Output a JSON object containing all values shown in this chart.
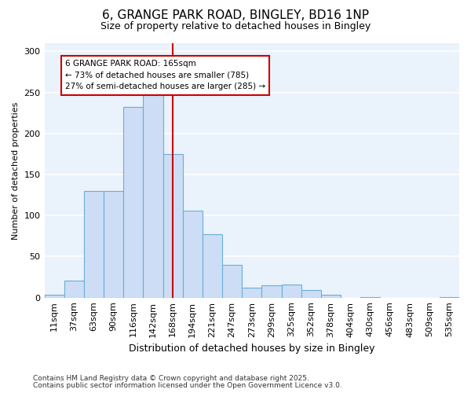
{
  "title1": "6, GRANGE PARK ROAD, BINGLEY, BD16 1NP",
  "title2": "Size of property relative to detached houses in Bingley",
  "xlabel": "Distribution of detached houses by size in Bingley",
  "ylabel": "Number of detached properties",
  "categories": [
    "11sqm",
    "37sqm",
    "63sqm",
    "90sqm",
    "116sqm",
    "142sqm",
    "168sqm",
    "194sqm",
    "221sqm",
    "247sqm",
    "273sqm",
    "299sqm",
    "325sqm",
    "352sqm",
    "378sqm",
    "404sqm",
    "430sqm",
    "456sqm",
    "483sqm",
    "509sqm",
    "535sqm"
  ],
  "values": [
    4,
    21,
    130,
    130,
    232,
    251,
    175,
    106,
    77,
    40,
    12,
    15,
    16,
    9,
    4,
    0,
    1,
    0,
    0,
    0,
    1
  ],
  "bar_color": "#ccddf5",
  "bar_edge_color": "#6baed6",
  "vline_color": "#cc0000",
  "vline_pos": 6.0,
  "annotation_text": "6 GRANGE PARK ROAD: 165sqm\n← 73% of detached houses are smaller (785)\n27% of semi-detached houses are larger (285) →",
  "annotation_box_facecolor": "#ffffff",
  "annotation_box_edgecolor": "#cc0000",
  "fig_bg_color": "#ffffff",
  "plot_bg_color": "#eaf2fb",
  "grid_color": "#ffffff",
  "footnote1": "Contains HM Land Registry data © Crown copyright and database right 2025.",
  "footnote2": "Contains public sector information licensed under the Open Government Licence v3.0.",
  "ylim": [
    0,
    310
  ],
  "yticks": [
    0,
    50,
    100,
    150,
    200,
    250,
    300
  ],
  "title1_fontsize": 11,
  "title2_fontsize": 9,
  "xlabel_fontsize": 9,
  "ylabel_fontsize": 8,
  "tick_fontsize": 8,
  "annot_fontsize": 7.5,
  "footnote_fontsize": 6.5
}
